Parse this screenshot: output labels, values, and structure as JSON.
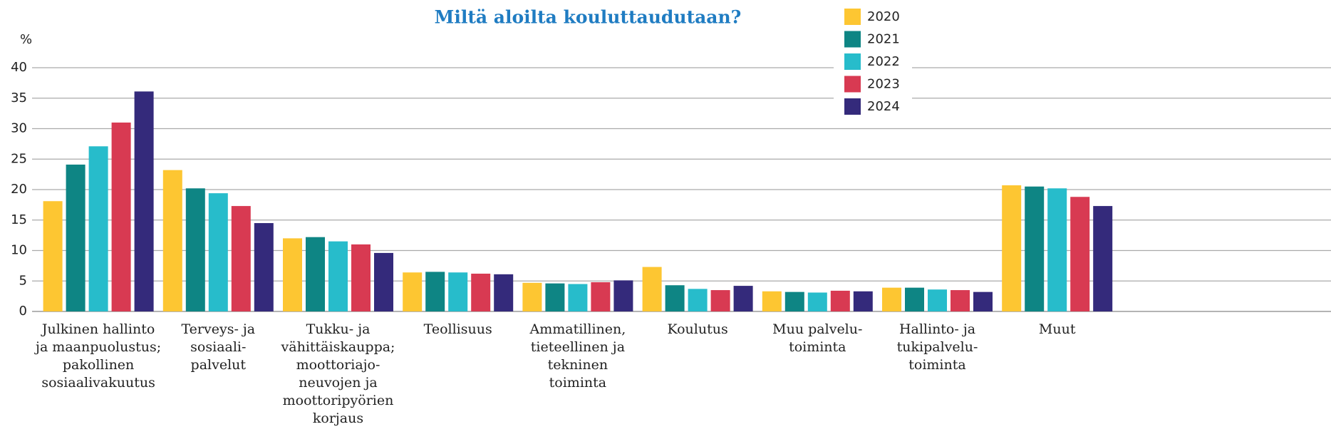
{
  "chart_data": {
    "type": "bar",
    "title": "Miltä aloilta kouluttaudutaan?",
    "y_label": "%",
    "categories": [
      "Julkinen hallinto\nja maanpuolustus;\npakollinen\nsosiaalivakuutus",
      "Terveys- ja\nsosiaali-\npalvelut",
      "Tukku- ja\nvähittäiskauppa;\nmoottoriajo-\nneuvojen ja\nmoottoripyörien\nkorjaus",
      "Teollisuus",
      "Ammatillinen,\ntieteellinen ja\ntekninen\ntoiminta",
      "Koulutus",
      "Muu palvelu-\ntoiminta",
      "Hallinto- ja\ntukipalvelu-\ntoiminta",
      "Muut"
    ],
    "series": [
      {
        "name": "2020",
        "color": "#fdc632",
        "values": [
          18.1,
          23.2,
          12.0,
          6.4,
          4.7,
          7.3,
          3.3,
          3.9,
          20.7
        ]
      },
      {
        "name": "2021",
        "color": "#0e8584",
        "values": [
          24.1,
          20.2,
          12.2,
          6.5,
          4.6,
          4.3,
          3.2,
          3.9,
          20.5
        ]
      },
      {
        "name": "2022",
        "color": "#27bccb",
        "values": [
          27.1,
          19.4,
          11.5,
          6.4,
          4.5,
          3.7,
          3.1,
          3.6,
          20.2
        ]
      },
      {
        "name": "2023",
        "color": "#d83a52",
        "values": [
          31.0,
          17.3,
          11.0,
          6.2,
          4.8,
          3.5,
          3.4,
          3.5,
          18.8
        ]
      },
      {
        "name": "2024",
        "color": "#342a7b",
        "values": [
          36.1,
          14.5,
          9.6,
          6.1,
          5.1,
          4.2,
          3.3,
          3.2,
          17.3
        ]
      }
    ],
    "ylim": [
      0,
      40
    ],
    "yticks": [
      0,
      5,
      10,
      15,
      20,
      25,
      30,
      35,
      40
    ],
    "grid": true,
    "legend": "top-right"
  }
}
